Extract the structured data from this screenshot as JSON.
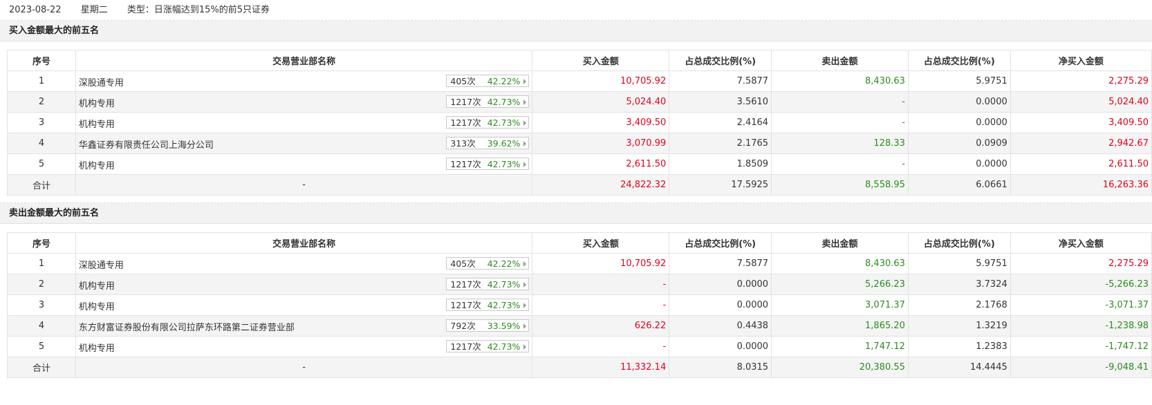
{
  "header": {
    "date": "2023-08-22",
    "weekday": "星期二",
    "type_label": "类型：日涨幅达到15%的前5只证券"
  },
  "columns": [
    "序号",
    "交易营业部名称",
    "买入金额",
    "占总成交比例(%)",
    "卖出金额",
    "占总成交比例(%)",
    "净买入金额"
  ],
  "colors": {
    "red": "#e1001b",
    "green": "#2a8c1e"
  },
  "buy_section": {
    "title": "买入金额最大的前五名",
    "rows": [
      {
        "no": "1",
        "name": "深股通专用",
        "count": "405次",
        "rate": "42.22%",
        "buy": "10,705.92",
        "buy_pct": "7.5877",
        "sell": "8,430.63",
        "sell_pct": "5.9751",
        "net": "2,275.29"
      },
      {
        "no": "2",
        "name": "机构专用",
        "count": "1217次",
        "rate": "42.73%",
        "buy": "5,024.40",
        "buy_pct": "3.5610",
        "sell": "-",
        "sell_pct": "0.0000",
        "net": "5,024.40"
      },
      {
        "no": "3",
        "name": "机构专用",
        "count": "1217次",
        "rate": "42.73%",
        "buy": "3,409.50",
        "buy_pct": "2.4164",
        "sell": "-",
        "sell_pct": "0.0000",
        "net": "3,409.50"
      },
      {
        "no": "4",
        "name": "华鑫证券有限责任公司上海分公司",
        "count": "313次",
        "rate": "39.62%",
        "buy": "3,070.99",
        "buy_pct": "2.1765",
        "sell": "128.33",
        "sell_pct": "0.0909",
        "net": "2,942.67"
      },
      {
        "no": "5",
        "name": "机构专用",
        "count": "1217次",
        "rate": "42.73%",
        "buy": "2,611.50",
        "buy_pct": "1.8509",
        "sell": "-",
        "sell_pct": "0.0000",
        "net": "2,611.50"
      }
    ],
    "total": {
      "label": "合计",
      "name": "-",
      "buy": "24,822.32",
      "buy_pct": "17.5925",
      "sell": "8,558.95",
      "sell_pct": "6.0661",
      "net": "16,263.36"
    }
  },
  "sell_section": {
    "title": "卖出金额最大的前五名",
    "rows": [
      {
        "no": "1",
        "name": "深股通专用",
        "count": "405次",
        "rate": "42.22%",
        "buy": "10,705.92",
        "buy_pct": "7.5877",
        "sell": "8,430.63",
        "sell_pct": "5.9751",
        "net": "2,275.29"
      },
      {
        "no": "2",
        "name": "机构专用",
        "count": "1217次",
        "rate": "42.73%",
        "buy": "-",
        "buy_pct": "0.0000",
        "sell": "5,266.23",
        "sell_pct": "3.7324",
        "net": "-5,266.23"
      },
      {
        "no": "3",
        "name": "机构专用",
        "count": "1217次",
        "rate": "42.73%",
        "buy": "-",
        "buy_pct": "0.0000",
        "sell": "3,071.37",
        "sell_pct": "2.1768",
        "net": "-3,071.37"
      },
      {
        "no": "4",
        "name": "东方财富证券股份有限公司拉萨东环路第二证券营业部",
        "count": "792次",
        "rate": "33.59%",
        "buy": "626.22",
        "buy_pct": "0.4438",
        "sell": "1,865.20",
        "sell_pct": "1.3219",
        "net": "-1,238.98"
      },
      {
        "no": "5",
        "name": "机构专用",
        "count": "1217次",
        "rate": "42.73%",
        "buy": "-",
        "buy_pct": "0.0000",
        "sell": "1,747.12",
        "sell_pct": "1.2383",
        "net": "-1,747.12"
      }
    ],
    "total": {
      "label": "合计",
      "name": "-",
      "buy": "11,332.14",
      "buy_pct": "8.0315",
      "sell": "20,380.55",
      "sell_pct": "14.4445",
      "net": "-9,048.41"
    }
  }
}
